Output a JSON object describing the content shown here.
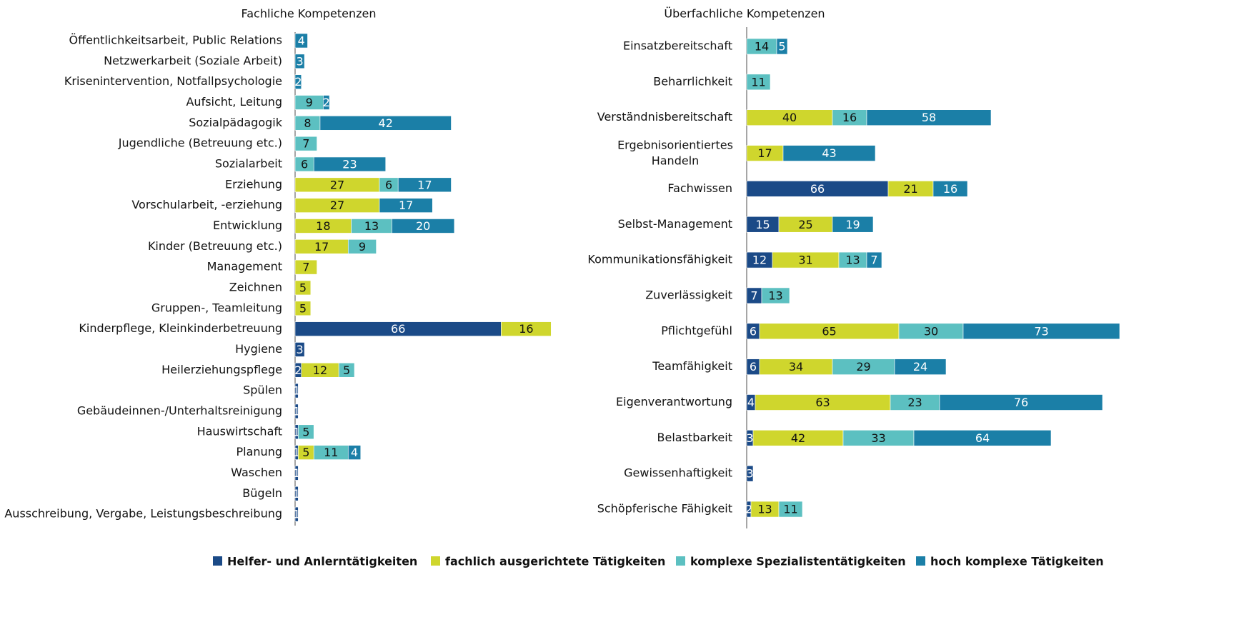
{
  "chart_data": [
    {
      "type": "stacked-bar-horizontal",
      "title": "Fachliche Kompetenzen",
      "categories": [
        "Öffentlichkeitsarbeit, Public Relations",
        "Netzwerkarbeit (Soziale Arbeit)",
        "Krisenintervention, Notfallpsychologie",
        "Aufsicht, Leitung",
        "Sozialpädagogik",
        "Jugendliche (Betreuung etc.)",
        "Sozialarbeit",
        "Erziehung",
        "Vorschularbeit, -erziehung",
        "Entwicklung",
        "Kinder (Betreuung etc.)",
        "Management",
        "Zeichnen",
        "Gruppen-, Teamleitung",
        "Kinderpflege, Kleinkinderbetreuung",
        "Hygiene",
        "Heilerziehungspflege",
        "Spülen",
        "Gebäudeinnen-/Unterhaltsreinigung",
        "Hauswirtschaft",
        "Planung",
        "Waschen",
        "Bügeln",
        "Ausschreibung, Vergabe, Leistungsbeschreibung"
      ],
      "series": [
        {
          "name": "Helfer- und Anlerntätigkeiten",
          "color": "#1b4a87",
          "values": [
            null,
            null,
            null,
            null,
            null,
            null,
            null,
            null,
            null,
            null,
            null,
            null,
            null,
            null,
            66,
            3,
            2,
            1,
            1,
            1,
            1,
            1,
            1,
            1
          ]
        },
        {
          "name": "fachlich ausgerichtete Tätigkeiten",
          "color": "#cfd62d",
          "values": [
            null,
            null,
            null,
            null,
            null,
            null,
            null,
            27,
            27,
            18,
            17,
            7,
            5,
            5,
            16,
            null,
            12,
            null,
            null,
            null,
            5,
            null,
            null,
            null
          ]
        },
        {
          "name": "komplexe Spezialistentätigkeiten",
          "color": "#5cc0c1",
          "values": [
            null,
            null,
            null,
            9,
            8,
            7,
            6,
            6,
            null,
            13,
            9,
            null,
            null,
            null,
            null,
            null,
            5,
            null,
            null,
            5,
            11,
            null,
            null,
            null
          ]
        },
        {
          "name": "hoch komplexe Tätigkeiten",
          "color": "#1b7fa7",
          "values": [
            4,
            3,
            2,
            2,
            42,
            null,
            23,
            17,
            17,
            20,
            null,
            null,
            null,
            null,
            null,
            null,
            null,
            null,
            null,
            null,
            4,
            null,
            null,
            null
          ]
        }
      ]
    },
    {
      "type": "stacked-bar-horizontal",
      "title": "Überfachliche Kompetenzen",
      "categories": [
        "Einsatzbereitschaft",
        "Beharrlichkeit",
        "Verständnisbereitschaft",
        "Ergebnisorientiertes Handeln",
        "Fachwissen",
        "Selbst-Management",
        "Kommunikationsfähigkeit",
        "Zuverlässigkeit",
        "Pflichtgefühl",
        "Teamfähigkeit",
        "Eigenverantwortung",
        "Belastbarkeit",
        "Gewissenhaftigkeit",
        "Schöpferische Fähigkeit"
      ],
      "series": [
        {
          "name": "Helfer- und Anlerntätigkeiten",
          "color": "#1b4a87",
          "values": [
            null,
            null,
            null,
            null,
            66,
            15,
            12,
            7,
            6,
            6,
            4,
            3,
            3,
            2
          ]
        },
        {
          "name": "fachlich ausgerichtete Tätigkeiten",
          "color": "#cfd62d",
          "values": [
            null,
            null,
            40,
            17,
            21,
            25,
            31,
            null,
            65,
            34,
            63,
            42,
            null,
            13
          ]
        },
        {
          "name": "komplexe Spezialistentätigkeiten",
          "color": "#5cc0c1",
          "values": [
            14,
            11,
            16,
            null,
            null,
            null,
            13,
            13,
            30,
            29,
            23,
            33,
            null,
            11
          ]
        },
        {
          "name": "hoch komplexe Tätigkeiten",
          "color": "#1b7fa7",
          "values": [
            5,
            null,
            58,
            43,
            16,
            19,
            7,
            null,
            73,
            24,
            76,
            64,
            null,
            null
          ]
        }
      ]
    }
  ]
}
